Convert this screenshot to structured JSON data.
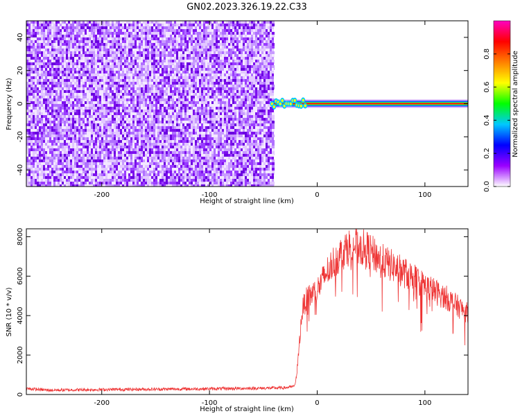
{
  "figure": {
    "title": "GN02.2023.326.19.22.C33"
  },
  "colorbar": {
    "label": "Normalized spectral amplitude",
    "ticks": [
      "0.0",
      "0.2",
      "0.4",
      "0.6",
      "0.8"
    ],
    "colors": [
      "#ffffff",
      "#9a00ff",
      "#0000ff",
      "#00c8ff",
      "#00ff00",
      "#ffff00",
      "#ff8000",
      "#ff0000",
      "#ff00c0"
    ]
  },
  "chart_data": [
    {
      "type": "heatmap",
      "title": "",
      "xlabel": "Height of straight line (km)",
      "ylabel": "Frequency (Hz)",
      "xlim": [
        -270,
        140
      ],
      "ylim": [
        -50,
        50
      ],
      "xticks": [
        "-200",
        "-100",
        "0",
        "100"
      ],
      "yticks": [
        "-40",
        "-20",
        "0",
        "20",
        "40"
      ],
      "noise_region_x": [
        -270,
        -42
      ],
      "noise_amplitude_range": [
        0.0,
        0.3
      ],
      "signal_band": {
        "x": [
          -42,
          140
        ],
        "frequency": 0,
        "peak_amplitude": 1.0
      },
      "grid": false
    },
    {
      "type": "line",
      "title": "",
      "xlabel": "Height of straight line (km)",
      "ylabel": "SNR (10 * v/v)",
      "xlim": [
        -270,
        140
      ],
      "ylim": [
        0,
        8400
      ],
      "xticks": [
        "-200",
        "-100",
        "0",
        "100"
      ],
      "yticks": [
        "0",
        "2000",
        "4000",
        "6000",
        "8000"
      ],
      "color": "#ee3333",
      "series": [
        {
          "x": [
            -270,
            -250,
            -200,
            -150,
            -100,
            -50,
            -30,
            -22,
            -20,
            -18,
            -16,
            -14,
            -12,
            -10,
            -5,
            0,
            5,
            10,
            15,
            20,
            25,
            30,
            35,
            40,
            45,
            50,
            60,
            70,
            80,
            90,
            100,
            110,
            120,
            130,
            140
          ],
          "values": [
            300,
            220,
            250,
            270,
            290,
            320,
            340,
            400,
            600,
            1600,
            3000,
            4200,
            4600,
            4800,
            5100,
            5300,
            5800,
            6300,
            6700,
            7000,
            7300,
            7500,
            7550,
            7450,
            7400,
            7200,
            6800,
            6500,
            6200,
            5900,
            5500,
            5200,
            4900,
            4500,
            4100
          ]
        }
      ],
      "grid": false
    }
  ]
}
